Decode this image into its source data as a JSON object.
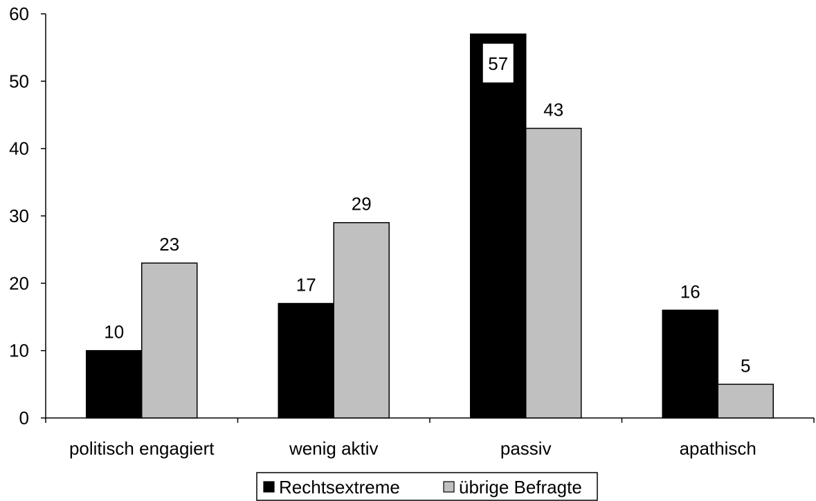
{
  "chart_data": {
    "type": "bar",
    "categories": [
      "politisch engagiert",
      "wenig aktiv",
      "passiv",
      "apathisch"
    ],
    "series": [
      {
        "name": "Rechtsextreme",
        "values": [
          10,
          17,
          57,
          16
        ],
        "color": "#000000"
      },
      {
        "name": "übrige Befragte",
        "values": [
          23,
          29,
          43,
          5
        ],
        "color": "#c0c0c0"
      }
    ],
    "ylim": [
      0,
      60
    ],
    "yticks": [
      0,
      10,
      20,
      30,
      40,
      50,
      60
    ],
    "grid": false,
    "legend_position": "bottom",
    "data_labels": true
  }
}
